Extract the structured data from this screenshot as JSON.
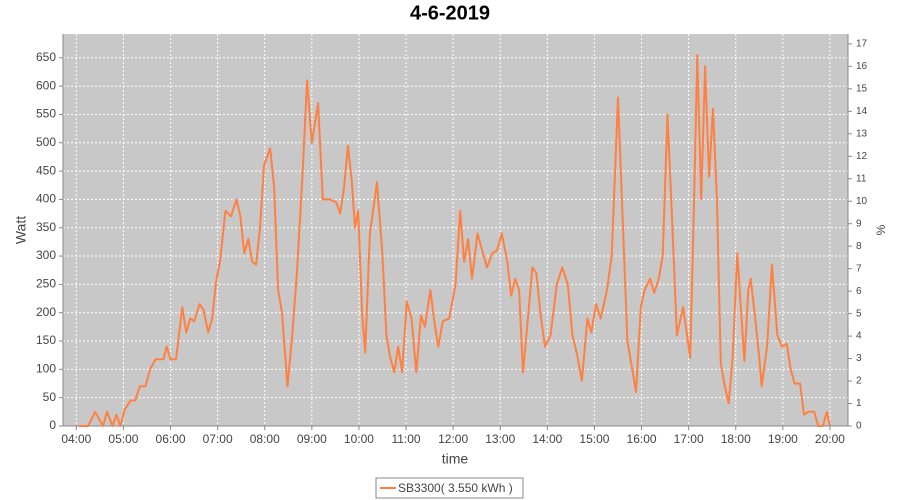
{
  "chart_data": {
    "type": "line",
    "title": "4-6-2019",
    "x_label": "time",
    "y_label": "Watt",
    "y2_label": "%",
    "x": [
      "04:03",
      "04:15",
      "04:24",
      "04:34",
      "04:39",
      "04:46",
      "04:51",
      "04:56",
      "05:02",
      "05:09",
      "05:15",
      "05:21",
      "05:28",
      "05:34",
      "05:41",
      "05:47",
      "05:51",
      "05:55",
      "06:00",
      "06:07",
      "06:15",
      "06:20",
      "06:25",
      "06:30",
      "06:37",
      "06:42",
      "06:48",
      "06:53",
      "06:58",
      "07:03",
      "07:10",
      "07:17",
      "07:24",
      "07:29",
      "07:34",
      "07:39",
      "07:44",
      "07:49",
      "07:54",
      "07:59",
      "08:07",
      "08:12",
      "08:17",
      "08:22",
      "08:29",
      "08:35",
      "08:41",
      "08:48",
      "08:54",
      "09:00",
      "09:08",
      "09:14",
      "09:23",
      "09:31",
      "09:36",
      "09:41",
      "09:46",
      "09:51",
      "09:55",
      "09:59",
      "10:04",
      "10:08",
      "10:14",
      "10:23",
      "10:30",
      "10:35",
      "10:40",
      "10:45",
      "10:50",
      "10:55",
      "11:01",
      "11:07",
      "11:13",
      "11:19",
      "11:24",
      "11:31",
      "11:36",
      "11:41",
      "11:47",
      "11:55",
      "12:03",
      "12:09",
      "12:14",
      "12:19",
      "12:24",
      "12:31",
      "12:37",
      "12:43",
      "12:50",
      "12:56",
      "13:02",
      "13:09",
      "13:14",
      "13:19",
      "13:24",
      "13:29",
      "13:34",
      "13:41",
      "13:46",
      "13:51",
      "13:57",
      "14:04",
      "14:12",
      "14:19",
      "14:26",
      "14:32",
      "14:38",
      "14:44",
      "14:51",
      "14:56",
      "15:02",
      "15:08",
      "15:16",
      "15:22",
      "15:30",
      "15:35",
      "15:42",
      "15:47",
      "15:53",
      "15:59",
      "16:04",
      "16:11",
      "16:16",
      "16:22",
      "16:27",
      "16:33",
      "16:39",
      "16:45",
      "16:53",
      "16:58",
      "17:02",
      "17:07",
      "17:11",
      "17:16",
      "17:21",
      "17:26",
      "17:31",
      "17:36",
      "17:41",
      "17:46",
      "17:51",
      "17:56",
      "18:02",
      "18:07",
      "18:11",
      "18:16",
      "18:19",
      "18:24",
      "18:30",
      "18:33",
      "18:40",
      "18:46",
      "18:53",
      "18:59",
      "19:05",
      "19:10",
      "19:15",
      "19:22",
      "19:27",
      "19:32",
      "19:40",
      "19:45",
      "19:51",
      "19:56",
      "20:00"
    ],
    "series": [
      {
        "name": "SB3300( 3.550 kWh )",
        "color": "#ff8040",
        "values": [
          0,
          0,
          25,
          0,
          25,
          0,
          20,
          0,
          30,
          45,
          45,
          70,
          70,
          100,
          118,
          118,
          118,
          140,
          118,
          118,
          210,
          165,
          190,
          185,
          215,
          205,
          165,
          190,
          255,
          290,
          380,
          370,
          400,
          370,
          305,
          330,
          290,
          285,
          350,
          460,
          490,
          420,
          240,
          200,
          70,
          160,
          270,
          440,
          610,
          500,
          570,
          400,
          400,
          395,
          375,
          420,
          495,
          430,
          350,
          380,
          200,
          130,
          340,
          430,
          300,
          160,
          120,
          95,
          140,
          95,
          220,
          190,
          95,
          195,
          175,
          240,
          185,
          140,
          185,
          190,
          250,
          380,
          290,
          330,
          260,
          340,
          310,
          280,
          305,
          310,
          340,
          290,
          230,
          260,
          240,
          95,
          170,
          280,
          270,
          200,
          140,
          160,
          250,
          280,
          250,
          160,
          125,
          80,
          190,
          165,
          215,
          190,
          240,
          300,
          580,
          400,
          150,
          110,
          60,
          210,
          240,
          260,
          235,
          260,
          300,
          550,
          360,
          160,
          210,
          160,
          120,
          400,
          655,
          400,
          635,
          440,
          560,
          400,
          110,
          70,
          40,
          120,
          305,
          200,
          115,
          240,
          260,
          200,
          120,
          70,
          140,
          285,
          160,
          140,
          145,
          100,
          75,
          75,
          20,
          25,
          25,
          0,
          0,
          25,
          0
        ]
      }
    ],
    "xlim": [
      "03:43",
      "20:23"
    ],
    "xticks": [
      "04:00",
      "05:00",
      "06:00",
      "07:00",
      "08:00",
      "09:00",
      "10:00",
      "11:00",
      "12:00",
      "13:00",
      "14:00",
      "15:00",
      "16:00",
      "17:00",
      "18:00",
      "19:00",
      "20:00"
    ],
    "ylim": [
      0,
      692
    ],
    "yticks": [
      0,
      50,
      100,
      150,
      200,
      250,
      300,
      350,
      400,
      450,
      500,
      550,
      600,
      650
    ],
    "y2lim": [
      0,
      17.44
    ],
    "y2ticks": [
      0,
      1,
      2,
      3,
      4,
      5,
      6,
      7,
      8,
      9,
      10,
      11,
      12,
      13,
      14,
      15,
      16,
      17
    ],
    "grid": true
  }
}
